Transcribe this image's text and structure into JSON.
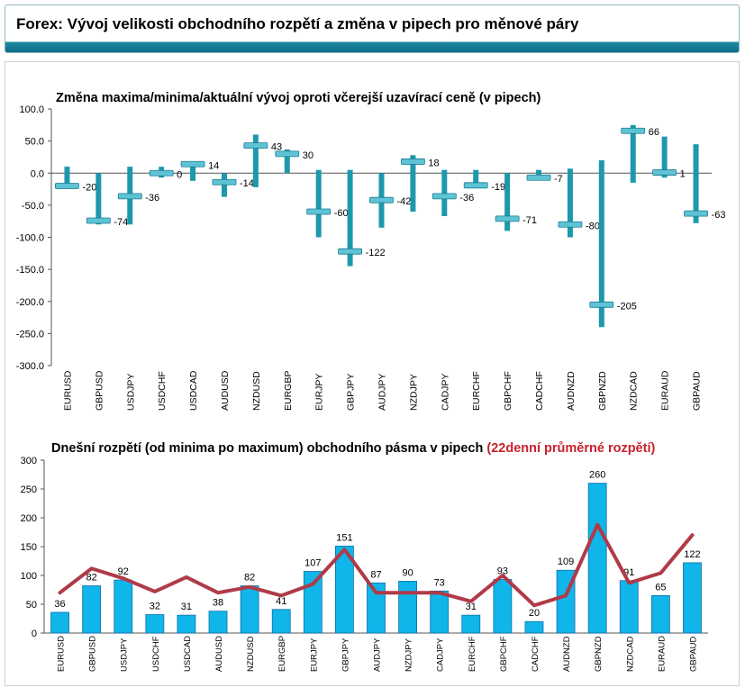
{
  "header": {
    "title": "Forex: Vývoj velikosti obchodního rozpětí a změna v pipech pro měnové páry"
  },
  "chart_data": [
    {
      "type": "range",
      "title": "Změna maxima/minima/aktuální vývoj oproti včerejší uzavírací ceně (v pipech)",
      "ylim": [
        -300,
        100
      ],
      "yticks": [
        "100.0",
        "50.0",
        "0.0",
        "-50.0",
        "-100.0",
        "-150.0",
        "-200.0",
        "-250.0",
        "-300.0"
      ],
      "categories": [
        "EURUSD",
        "GBPUSD",
        "USDJPY",
        "USDCHF",
        "USDCAD",
        "AUDUSD",
        "NZDUSD",
        "EURGBP",
        "EURJPY",
        "GBPJPY",
        "AUDJPY",
        "NZDJPY",
        "CADJPY",
        "EURCHF",
        "GBPCHF",
        "CADCHF",
        "AUDNZD",
        "GBPNZD",
        "NZDCAD",
        "EURAUD",
        "GBPAUD"
      ],
      "high": [
        10,
        0,
        10,
        10,
        17,
        0,
        60,
        37,
        5,
        5,
        0,
        28,
        5,
        5,
        0,
        5,
        7,
        20,
        75,
        57,
        45
      ],
      "low": [
        -22,
        -80,
        -80,
        -7,
        -12,
        -37,
        -22,
        0,
        -100,
        -145,
        -85,
        -60,
        -67,
        -23,
        -90,
        -10,
        -100,
        -240,
        -15,
        -7,
        -78
      ],
      "current": [
        -20,
        -74,
        -36,
        0,
        14,
        -14,
        43,
        30,
        -60,
        -122,
        -42,
        18,
        -36,
        -19,
        -71,
        -7,
        -80,
        -205,
        66,
        1,
        -63
      ],
      "labels": [
        "-20",
        "-74",
        "-36",
        "0",
        "14",
        "-14",
        "43",
        "30",
        "-60",
        "-122",
        "-42",
        "18",
        "-36",
        "-19",
        "-71",
        "-7",
        "-80",
        "-205",
        "66",
        "1",
        "-63"
      ],
      "colors": {
        "bar": "#1e98ad",
        "marker": "#5fc3d6"
      }
    },
    {
      "type": "bar+line",
      "title": "Dnešní rozpětí (od minima po maximum) obchodního pásma v pipech",
      "title_highlight": "(22denní průměrné rozpětí)",
      "ylim": [
        0,
        300
      ],
      "yticks": [
        "300",
        "250",
        "200",
        "150",
        "100",
        "50",
        "0"
      ],
      "categories": [
        "EURUSD",
        "GBPUSD",
        "USDJPY",
        "USDCHF",
        "USDCAD",
        "AUDUSD",
        "NZDUSD",
        "EURGBP",
        "EURJPY",
        "GBPJPY",
        "AUDJPY",
        "NZDJPY",
        "CADJPY",
        "EURCHF",
        "GBPCHF",
        "CADCHF",
        "AUDNZD",
        "GBPNZD",
        "NZDCAD",
        "EURAUD",
        "GBPAUD"
      ],
      "series": [
        {
          "type": "bar",
          "values": [
            36,
            82,
            92,
            32,
            31,
            38,
            82,
            41,
            107,
            151,
            87,
            90,
            73,
            31,
            93,
            20,
            109,
            260,
            91,
            65,
            122
          ]
        },
        {
          "type": "line",
          "values": [
            70,
            112,
            95,
            72,
            97,
            70,
            80,
            65,
            85,
            145,
            70,
            70,
            70,
            55,
            100,
            48,
            65,
            188,
            87,
            104,
            170
          ]
        }
      ],
      "colors": {
        "bar": "#10b5ea",
        "bar_edge": "#1070a8",
        "line": "#b03a48",
        "highlight": "#c8202e"
      }
    }
  ]
}
